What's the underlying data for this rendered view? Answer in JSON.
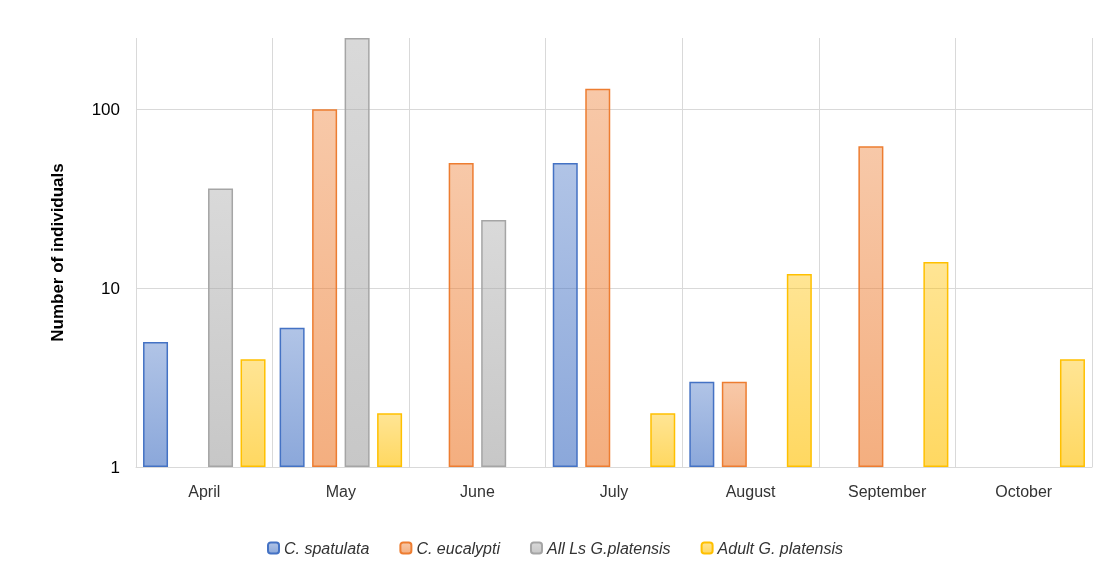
{
  "chart_data": {
    "type": "bar",
    "ylabel": "Number of individuals",
    "categories": [
      "April",
      "May",
      "June",
      "July",
      "August",
      "September",
      "October"
    ],
    "series": [
      {
        "name": "C. spatulata",
        "color": "#4472c4",
        "values": [
          5,
          6,
          null,
          50,
          3,
          null,
          null
        ]
      },
      {
        "name": "C. eucalypti",
        "color": "#ed7d31",
        "values": [
          null,
          100,
          50,
          130,
          3,
          62,
          null
        ]
      },
      {
        "name": "All Ls G.platensis",
        "color": "#a5a5a5",
        "values": [
          36,
          250,
          24,
          null,
          null,
          null,
          null
        ]
      },
      {
        "name": "Adult G. platensis",
        "color": "#ffc000",
        "values": [
          4,
          2,
          null,
          2,
          12,
          14,
          4
        ]
      }
    ],
    "log": true,
    "ylim": [
      1,
      250
    ],
    "yticks": [
      1,
      10,
      100
    ],
    "grid": true,
    "legend": "bottom"
  }
}
